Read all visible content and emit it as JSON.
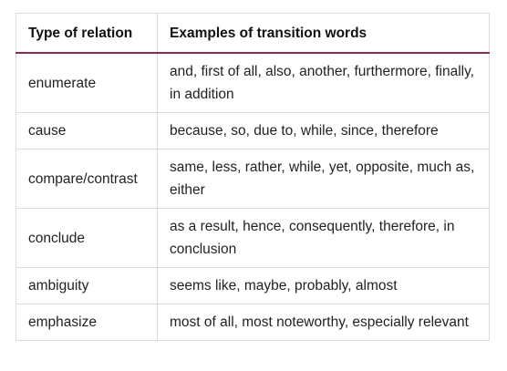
{
  "table": {
    "headers": [
      "Type of relation",
      "Examples of transition words"
    ],
    "rows": [
      {
        "relation": "enumerate",
        "examples": "and, first of all, also, another, furthermore, finally, in addition"
      },
      {
        "relation": "cause",
        "examples": "because, so, due to, while, since, therefore"
      },
      {
        "relation": "compare/contrast",
        "examples": "same, less, rather, while, yet, opposite, much as, either"
      },
      {
        "relation": "conclude",
        "examples": "as a result, hence, consequently, therefore, in conclusion"
      },
      {
        "relation": "ambiguity",
        "examples": "seems like, maybe, probably, almost"
      },
      {
        "relation": "emphasize",
        "examples": "most of all, most noteworthy, especially relevant"
      }
    ]
  },
  "colors": {
    "header_rule": "#8a2c52",
    "border": "#dcdcdc"
  }
}
